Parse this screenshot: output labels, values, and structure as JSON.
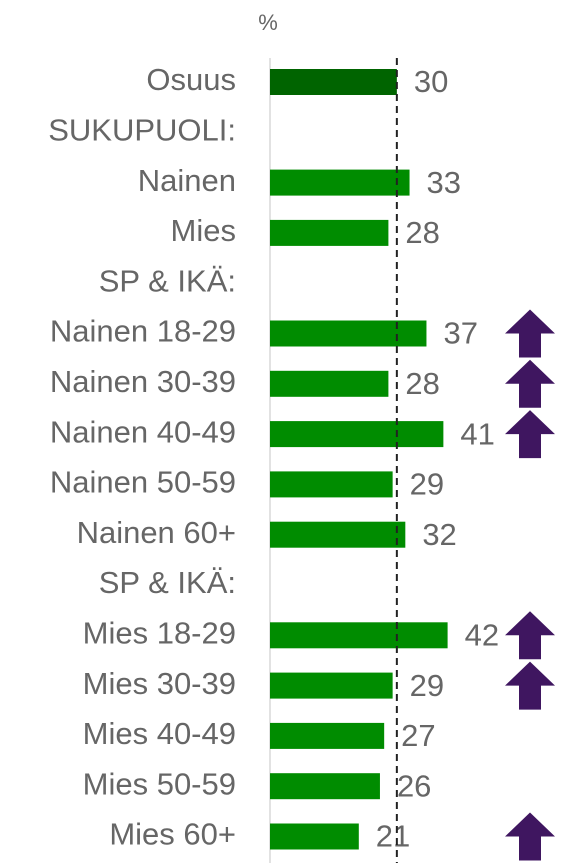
{
  "chart_data": {
    "type": "hbar",
    "axis_label": "%",
    "categories": [
      "Osuus",
      "SUKUPUOLI:",
      "Nainen",
      "Mies",
      "SP & IKÄ:",
      "Nainen 18-29",
      "Nainen 30-39",
      "Nainen 40-49",
      "Nainen 50-59",
      "Nainen 60+",
      "SP & IKÄ:",
      "Mies 18-29",
      "Mies 30-39",
      "Mies 40-49",
      "Mies 50-59",
      "Mies 60+"
    ],
    "values": [
      30,
      null,
      33,
      28,
      null,
      37,
      28,
      41,
      29,
      32,
      null,
      42,
      29,
      27,
      26,
      21
    ],
    "colors": [
      "#006400",
      null,
      "#008c00",
      "#008c00",
      null,
      "#008c00",
      "#008c00",
      "#008c00",
      "#008c00",
      "#008c00",
      null,
      "#008c00",
      "#008c00",
      "#008c00",
      "#008c00",
      "#008c00"
    ],
    "up_arrows": [
      false,
      false,
      false,
      false,
      false,
      true,
      true,
      true,
      false,
      false,
      false,
      true,
      true,
      false,
      false,
      true
    ],
    "arrow_color": "#3f1660",
    "reference_value": 30,
    "xlim": [
      0,
      70
    ]
  }
}
